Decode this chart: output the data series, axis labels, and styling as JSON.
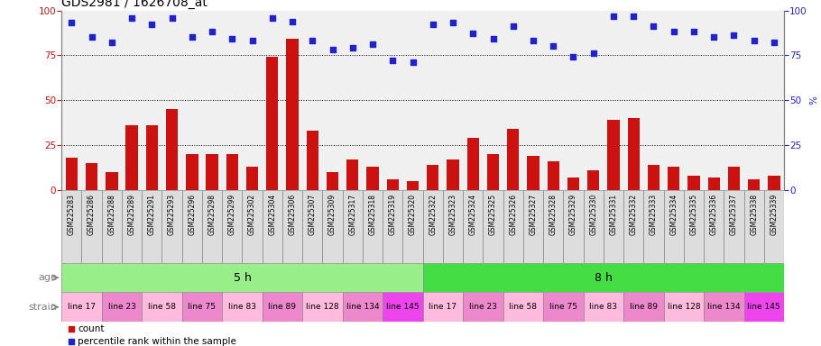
{
  "title": "GDS2981 / 1626708_at",
  "samples": [
    "GSM225283",
    "GSM225286",
    "GSM225288",
    "GSM225289",
    "GSM225291",
    "GSM225293",
    "GSM225296",
    "GSM225298",
    "GSM225299",
    "GSM225302",
    "GSM225304",
    "GSM225306",
    "GSM225307",
    "GSM225309",
    "GSM225317",
    "GSM225318",
    "GSM225319",
    "GSM225320",
    "GSM225322",
    "GSM225323",
    "GSM225324",
    "GSM225325",
    "GSM225326",
    "GSM225327",
    "GSM225328",
    "GSM225329",
    "GSM225330",
    "GSM225331",
    "GSM225332",
    "GSM225333",
    "GSM225334",
    "GSM225335",
    "GSM225336",
    "GSM225337",
    "GSM225338",
    "GSM225339"
  ],
  "counts": [
    18,
    15,
    10,
    36,
    36,
    45,
    20,
    20,
    20,
    13,
    74,
    84,
    33,
    10,
    17,
    13,
    6,
    5,
    14,
    17,
    29,
    20,
    34,
    19,
    16,
    7,
    11,
    39,
    40,
    14,
    13,
    8,
    7,
    13,
    6,
    8
  ],
  "percentiles": [
    93,
    85,
    82,
    96,
    92,
    96,
    85,
    88,
    84,
    83,
    96,
    94,
    83,
    78,
    79,
    81,
    72,
    71,
    92,
    93,
    87,
    84,
    91,
    83,
    80,
    74,
    76,
    97,
    97,
    91,
    88,
    88,
    85,
    86,
    83,
    82
  ],
  "age_groups": [
    {
      "label": "5 h",
      "start": 0,
      "end": 18,
      "color": "#98EE88"
    },
    {
      "label": "8 h",
      "start": 18,
      "end": 36,
      "color": "#44DD44"
    }
  ],
  "strain_groups": [
    {
      "label": "line 17",
      "start": 0,
      "end": 2,
      "color": "#FFBBDD"
    },
    {
      "label": "line 23",
      "start": 2,
      "end": 4,
      "color": "#EE88CC"
    },
    {
      "label": "line 58",
      "start": 4,
      "end": 6,
      "color": "#FFBBDD"
    },
    {
      "label": "line 75",
      "start": 6,
      "end": 8,
      "color": "#EE88CC"
    },
    {
      "label": "line 83",
      "start": 8,
      "end": 10,
      "color": "#FFBBDD"
    },
    {
      "label": "line 89",
      "start": 10,
      "end": 12,
      "color": "#EE88CC"
    },
    {
      "label": "line 128",
      "start": 12,
      "end": 14,
      "color": "#FFBBDD"
    },
    {
      "label": "line 134",
      "start": 14,
      "end": 16,
      "color": "#EE88CC"
    },
    {
      "label": "line 145",
      "start": 16,
      "end": 18,
      "color": "#EE44EE"
    },
    {
      "label": "line 17",
      "start": 18,
      "end": 20,
      "color": "#FFBBDD"
    },
    {
      "label": "line 23",
      "start": 20,
      "end": 22,
      "color": "#EE88CC"
    },
    {
      "label": "line 58",
      "start": 22,
      "end": 24,
      "color": "#FFBBDD"
    },
    {
      "label": "line 75",
      "start": 24,
      "end": 26,
      "color": "#EE88CC"
    },
    {
      "label": "line 83",
      "start": 26,
      "end": 28,
      "color": "#FFBBDD"
    },
    {
      "label": "line 89",
      "start": 28,
      "end": 30,
      "color": "#EE88CC"
    },
    {
      "label": "line 128",
      "start": 30,
      "end": 32,
      "color": "#FFBBDD"
    },
    {
      "label": "line 134",
      "start": 32,
      "end": 34,
      "color": "#EE88CC"
    },
    {
      "label": "line 145",
      "start": 34,
      "end": 36,
      "color": "#EE44EE"
    }
  ],
  "bar_color": "#CC1111",
  "dot_color": "#2222CC",
  "ylim": [
    0,
    100
  ],
  "yticks": [
    0,
    25,
    50,
    75,
    100
  ],
  "plot_bg": "#F0F0F0",
  "xtick_bg": "#DDDDDD",
  "title_fontsize": 10,
  "tick_fontsize": 7.5,
  "xlabel_fontsize": 5.5
}
